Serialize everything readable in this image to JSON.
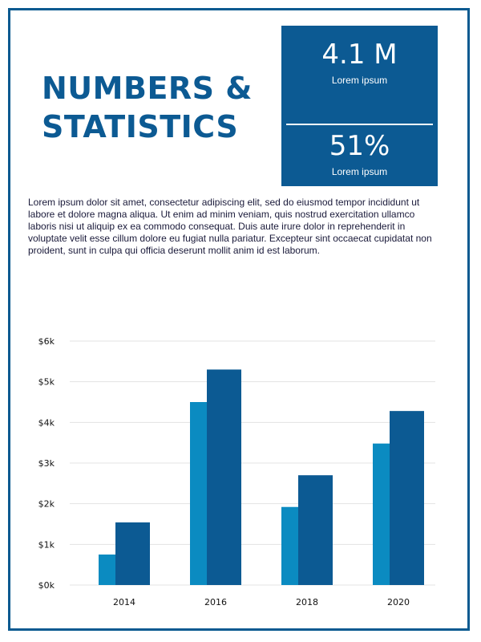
{
  "heading": {
    "line1": "NUMBERS &",
    "line2": "STATISTICS"
  },
  "stats": [
    {
      "value": "4.1 M",
      "label": "Lorem ipsum"
    },
    {
      "value": "51%",
      "label": "Lorem ipsum"
    }
  ],
  "body_text": "Lorem ipsum dolor sit amet, consectetur adipiscing elit, sed do eiusmod tempor incididunt ut labore et dolore magna aliqua. Ut enim ad minim veniam, quis nostrud exercitation ullamco laboris nisi ut aliquip ex ea commodo consequat. Duis aute irure dolor in reprehenderit in voluptate velit esse cillum dolore eu fugiat nulla pariatur. Excepteur sint occaecat cupidatat non proident, sunt in culpa qui officia deserunt mollit anim id est laborum.",
  "colors": {
    "brand": "#0c5a93",
    "series_light": "#0b8bc1",
    "series_dark": "#0c5a93",
    "grid": "#e3e3e3"
  },
  "chart_data": {
    "type": "bar",
    "title": "",
    "xlabel": "",
    "ylabel": "",
    "categories": [
      "2014",
      "2016",
      "2018",
      "2020"
    ],
    "series": [
      {
        "values": [
          750,
          4500,
          1920,
          3480
        ],
        "color": "#0b8bc1"
      },
      {
        "values": [
          1540,
          5300,
          2700,
          4280
        ],
        "color": "#0c5a93"
      }
    ],
    "ylim": [
      0,
      6000
    ],
    "yticks": [
      0,
      1000,
      2000,
      3000,
      4000,
      5000,
      6000
    ],
    "ytick_labels": [
      "$0k",
      "$1k",
      "$2k",
      "$3k",
      "$4k",
      "$5k",
      "$6k"
    ],
    "grid": true,
    "legend": false
  }
}
